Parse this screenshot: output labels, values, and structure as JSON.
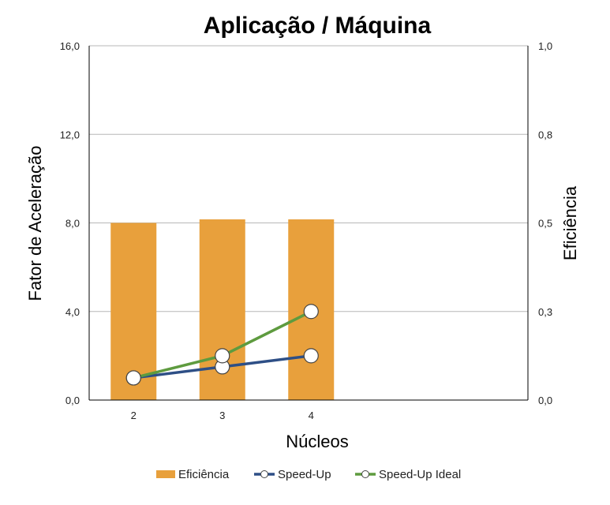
{
  "chart_data": {
    "type": "bar",
    "title": "Aplicação / Máquina",
    "xlabel": "Núcleos",
    "ylabel": "Fator de Aceleração",
    "y2label": "Eficiência",
    "categories": [
      "2",
      "3",
      "4"
    ],
    "ylim": [
      0,
      16
    ],
    "y2lim": [
      0,
      1
    ],
    "y_ticks": [
      "0,0",
      "4,0",
      "8,0",
      "12,0",
      "16,0"
    ],
    "y2_ticks": [
      "0,0",
      "0,3",
      "0,5",
      "0,8",
      "1,0"
    ],
    "grid": true,
    "legend_position": "bottom",
    "series": [
      {
        "name": "Eficiência",
        "type": "bar",
        "axis": "right",
        "values": [
          0.5,
          0.51,
          0.51
        ],
        "color": "#E8A03C"
      },
      {
        "name": "Speed-Up",
        "type": "line",
        "axis": "left",
        "values": [
          1.0,
          1.5,
          2.0
        ],
        "color": "#2E4F86"
      },
      {
        "name": "Speed-Up Ideal",
        "type": "line",
        "axis": "left",
        "values": [
          1.0,
          2.0,
          4.0
        ],
        "color": "#5E9B3F"
      }
    ]
  }
}
